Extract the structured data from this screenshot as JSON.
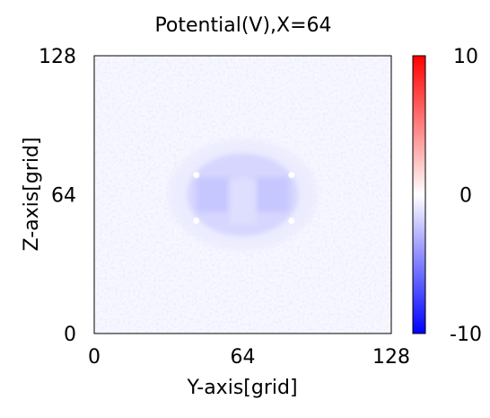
{
  "chart_data": {
    "type": "heatmap",
    "title": "Potential(V),X=64",
    "xlabel": "Y-axis[grid]",
    "ylabel": "Z-axis[grid]",
    "xlim": [
      0,
      128
    ],
    "ylim": [
      0,
      128
    ],
    "x_ticks": [
      "0",
      "64",
      "128"
    ],
    "y_ticks": [
      "0",
      "64",
      "128"
    ],
    "colorbar": {
      "range": [
        -10,
        10
      ],
      "tick_labels": [
        "10",
        "0",
        "-10"
      ],
      "colors": {
        "high": "#ff0000",
        "mid": "#ffffff",
        "low": "#0000ff"
      }
    },
    "field": {
      "background_value": -0.3,
      "cloud": {
        "center": [
          64,
          64
        ],
        "radius_y": 24,
        "radius_z": 19,
        "peak_value": -1.6
      },
      "electrodes": [
        {
          "y_range": [
            44,
            62
          ],
          "z_range": [
            56,
            72
          ],
          "value": -2.2
        },
        {
          "y_range": [
            66,
            84
          ],
          "z_range": [
            56,
            72
          ],
          "value": -2.2
        },
        {
          "y_range": [
            58,
            70
          ],
          "z_range": [
            50,
            72
          ],
          "value": -1.3
        }
      ],
      "hot_spots": [
        {
          "y": 44,
          "z": 73
        },
        {
          "y": 85,
          "z": 73
        },
        {
          "y": 44,
          "z": 52
        },
        {
          "y": 85,
          "z": 52
        }
      ]
    }
  }
}
